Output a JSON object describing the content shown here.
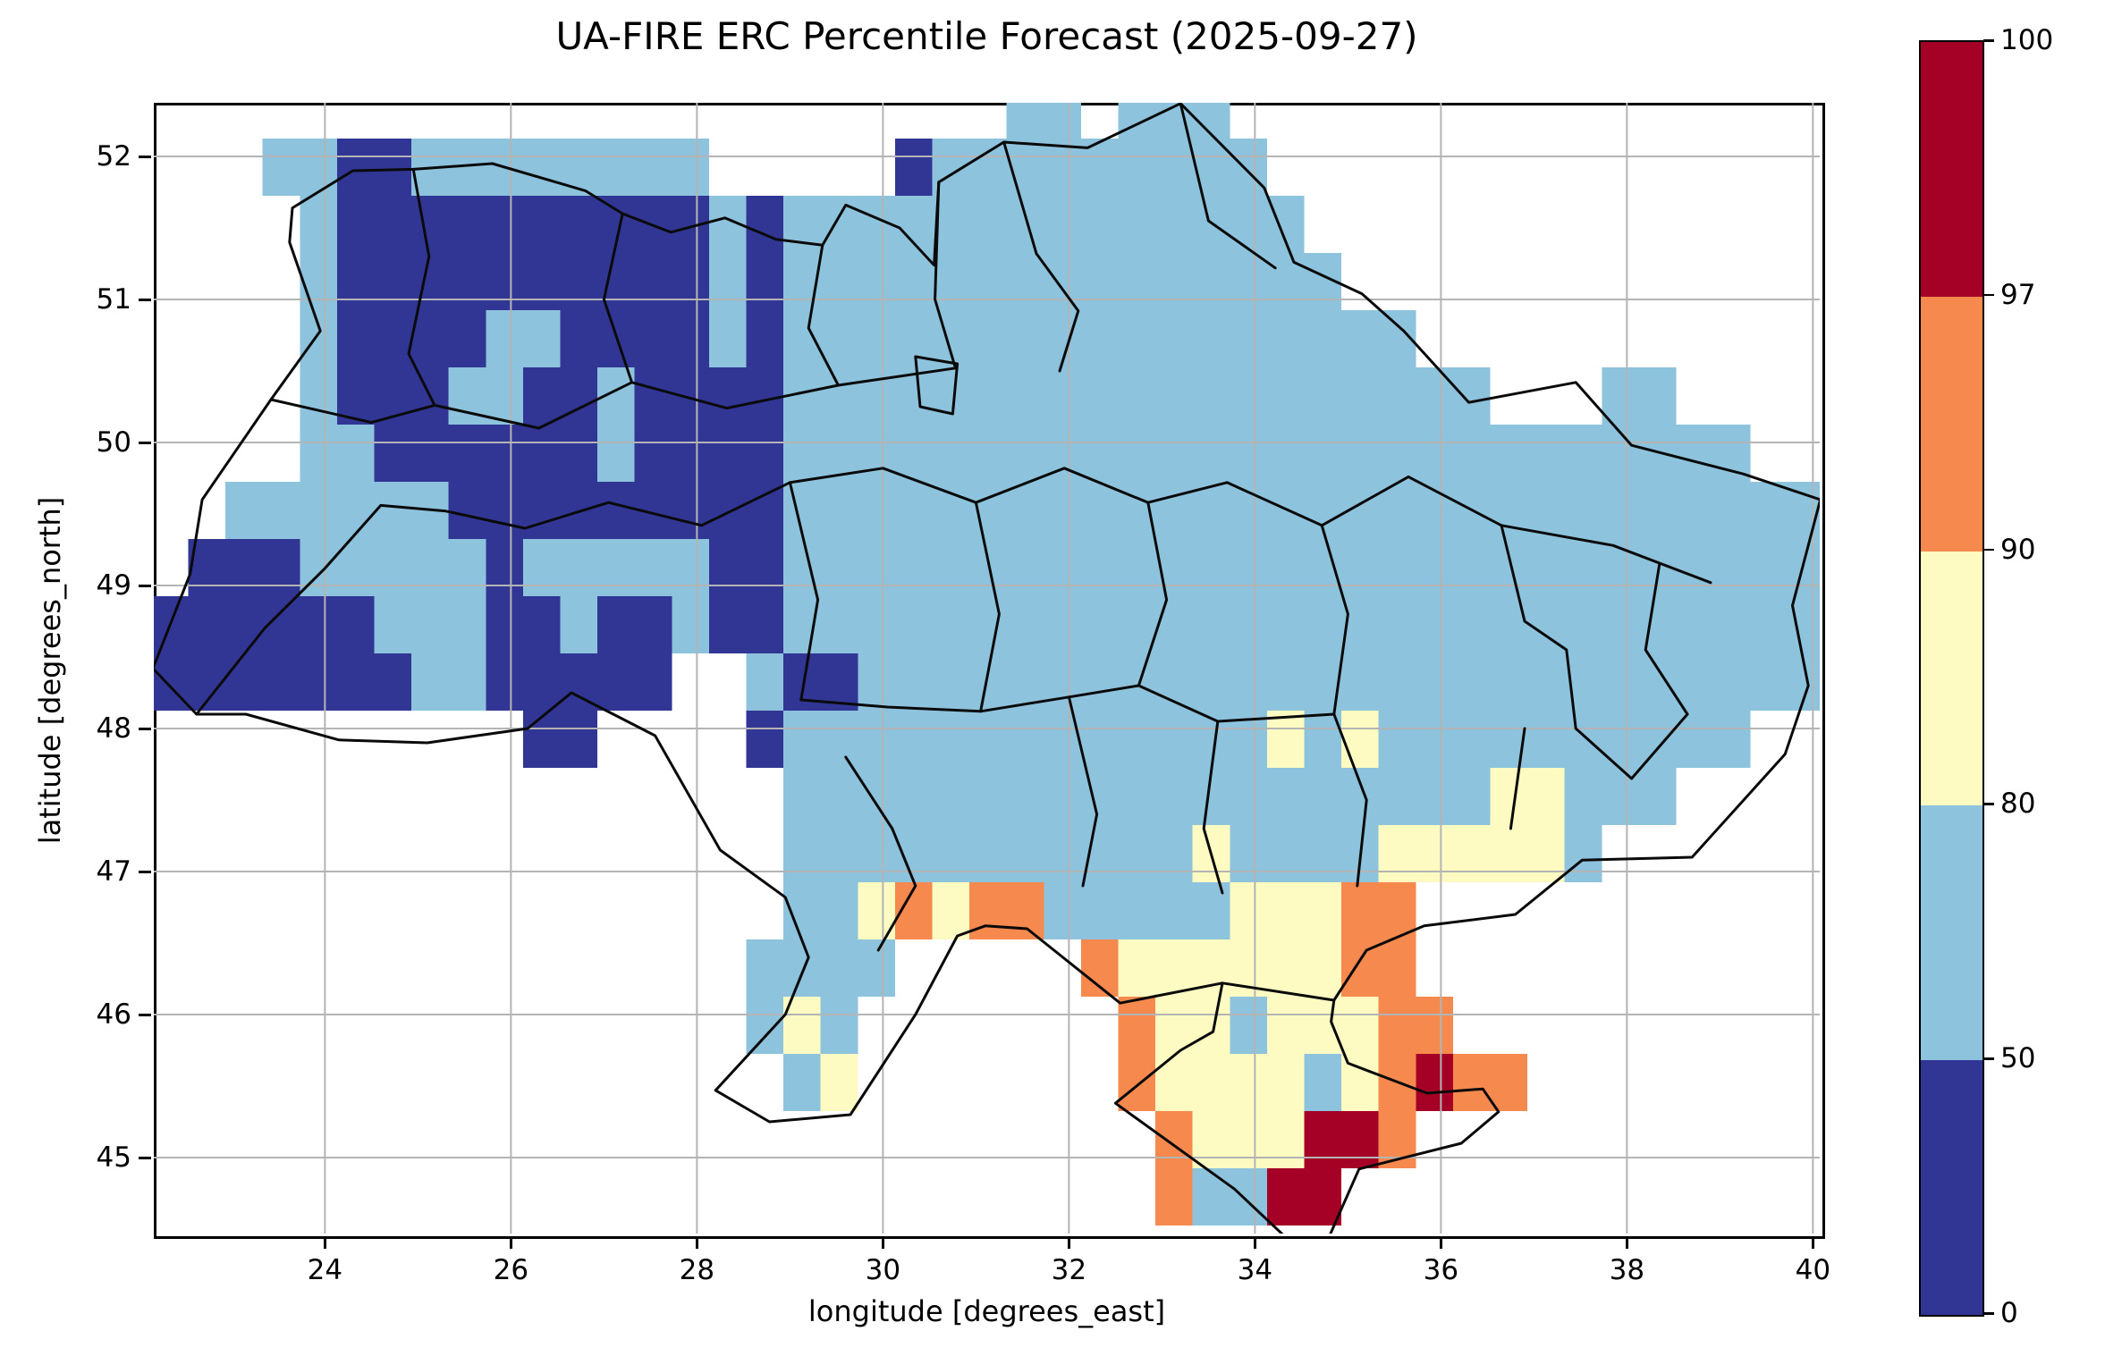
{
  "title": "UA-FIRE ERC Percentile Forecast (2025-09-27)",
  "axes": {
    "xlabel": "longitude [degrees_east]",
    "ylabel": "latitude [degrees_north]",
    "x_ticks": [
      {
        "value": 24,
        "label": "24"
      },
      {
        "value": 26,
        "label": "26"
      },
      {
        "value": 28,
        "label": "28"
      },
      {
        "value": 30,
        "label": "30"
      },
      {
        "value": 32,
        "label": "32"
      },
      {
        "value": 34,
        "label": "34"
      },
      {
        "value": 36,
        "label": "36"
      },
      {
        "value": 38,
        "label": "38"
      },
      {
        "value": 40,
        "label": "40"
      }
    ],
    "y_ticks": [
      {
        "value": 52,
        "label": "52"
      },
      {
        "value": 51,
        "label": "51"
      },
      {
        "value": 50,
        "label": "50"
      },
      {
        "value": 49,
        "label": "49"
      },
      {
        "value": 48,
        "label": "48"
      },
      {
        "value": 47,
        "label": "47"
      },
      {
        "value": 46,
        "label": "46"
      },
      {
        "value": 45,
        "label": "45"
      }
    ],
    "grid_color": "#b4b4b4",
    "lon_range": [
      22.16,
      40.08
    ],
    "lat_range": [
      44.47,
      52.375
    ]
  },
  "colorbar": {
    "boundaries": [
      0,
      50,
      80,
      90,
      97,
      100
    ],
    "labels_top_to_bottom": [
      "100",
      "97",
      "90",
      "80",
      "50",
      "0"
    ],
    "segments_bottom_to_top": [
      {
        "range": "0-50",
        "color": "#313695"
      },
      {
        "range": "50-80",
        "color": "#8ec3dd"
      },
      {
        "range": "80-90",
        "color": "#fdfbc1"
      },
      {
        "range": "90-97",
        "color": "#f6894e"
      },
      {
        "range": "97-100",
        "color": "#a50127"
      }
    ]
  },
  "chart_data": {
    "type": "heatmap",
    "title": "UA-FIRE ERC Percentile Forecast (2025-09-27)",
    "xlabel": "longitude [degrees_east]",
    "ylabel": "latitude [degrees_north]",
    "variable": "ERC percentile class",
    "grid": {
      "lon_origin": 22.13,
      "lat_top_origin": 52.525,
      "cell_deg": 0.4,
      "n_cols": 45,
      "n_rows": 20
    },
    "categories": {
      "B": {
        "range": "0-50",
        "color": "#313695"
      },
      "b": {
        "range": "50-80",
        "color": "#8ec3dd"
      },
      "y": {
        "range": "80-90",
        "color": "#fdfbc1"
      },
      "o": {
        "range": "90-97",
        "color": "#f6894e"
      },
      "r": {
        "range": "97-100",
        "color": "#a50127"
      },
      ".": {
        "range": "no data",
        "color": null
      }
    },
    "rows": [
      ".......................bb.bbb................",
      "...bbBBbbbbbbbb.....Bbbbbbbbbb...............",
      "....bBBBBBBBBBBbBbbbbbbbbbbbbbb..............",
      "....bBBBBBBBBBBbBbbbbbbbbbbbbbbb.............",
      "....bBBBBbbBBBBbBbbbbbbbbbbbbbbbbb...........",
      "....bBBBbbBBbBBBBbbbbbbbbbbbbbbbbbbb...bb....",
      "....bbBBBBBBbBBBBbbbbbbbbbbbbbbbbbbbbbbbbbb..",
      "..bbbbbbBBBBBBBBBbbbbbbbbbbbbbbbbbbbbbbbbbbbb",
      ".BBBbbbbbBbbbbbBBbbbbbbbbbbbbbbbbbbbbbbbbbbbb",
      "BBBBBBbbbBBbBBbBBbbbbbbbbbbbbbbbbbbbbbbbbbbbb",
      "BBBBBBBbbBBBBB..bBBbbbbbbbbbbbbbbbbbbbbbbbbbb",
      "..........BB....Bbbbbbbbbbbbbbybybbbbbbbbbb..",
      ".................bbbbbbbbbbbbbbbbbbbyybbb....",
      ".................bbbbbbbbbbbybbbbyyyyyb......",
      ".................bbyoyoobbbbbyyyoo...........",
      "................bbbb.....oyyyyyyoo...........",
      "................byb.......oyybyyyoo..........",
      ".................by.......oyyyybyoroo........",
      "...........................oyyyrro...........",
      "...........................obbrr............."
    ]
  },
  "map": {
    "border_color": "#0a0a0a",
    "borders": {
      "country": [
        [
          22.15,
          48.42
        ],
        [
          22.55,
          49.08
        ],
        [
          22.68,
          49.6
        ],
        [
          23.42,
          50.3
        ],
        [
          23.95,
          50.78
        ],
        [
          23.62,
          51.4
        ],
        [
          23.65,
          51.64
        ],
        [
          24.3,
          51.9
        ],
        [
          24.95,
          51.91
        ],
        [
          25.8,
          51.95
        ],
        [
          26.8,
          51.76
        ],
        [
          27.2,
          51.6
        ],
        [
          27.72,
          51.47
        ],
        [
          28.3,
          51.57
        ],
        [
          28.85,
          51.42
        ],
        [
          29.35,
          51.38
        ],
        [
          29.6,
          51.66
        ],
        [
          30.18,
          51.5
        ],
        [
          30.55,
          51.24
        ],
        [
          30.6,
          51.82
        ],
        [
          31.3,
          52.1
        ],
        [
          32.2,
          52.06
        ],
        [
          33.2,
          52.37
        ],
        [
          34.1,
          51.78
        ],
        [
          34.42,
          51.26
        ],
        [
          35.15,
          51.04
        ],
        [
          35.6,
          50.78
        ],
        [
          36.3,
          50.28
        ],
        [
          37.45,
          50.42
        ],
        [
          38.05,
          49.98
        ],
        [
          39.25,
          49.78
        ],
        [
          40.08,
          49.6
        ],
        [
          39.78,
          48.86
        ],
        [
          39.95,
          48.3
        ],
        [
          39.7,
          47.82
        ],
        [
          38.7,
          47.1
        ],
        [
          37.52,
          47.08
        ],
        [
          36.8,
          46.7
        ],
        [
          35.82,
          46.62
        ],
        [
          35.2,
          46.45
        ],
        [
          34.85,
          46.1
        ],
        [
          33.65,
          46.22
        ],
        [
          32.55,
          46.08
        ],
        [
          31.55,
          46.6
        ],
        [
          31.1,
          46.62
        ],
        [
          30.8,
          46.55
        ],
        [
          30.35,
          46.0
        ],
        [
          29.65,
          45.3
        ],
        [
          28.78,
          45.25
        ],
        [
          28.2,
          45.47
        ],
        [
          28.95,
          46.0
        ],
        [
          29.2,
          46.4
        ],
        [
          28.95,
          46.82
        ],
        [
          28.25,
          47.15
        ],
        [
          27.55,
          47.95
        ],
        [
          26.65,
          48.25
        ],
        [
          26.18,
          48.0
        ],
        [
          25.1,
          47.9
        ],
        [
          24.15,
          47.92
        ],
        [
          23.15,
          48.1
        ],
        [
          22.62,
          48.1
        ],
        [
          22.15,
          48.42
        ]
      ],
      "crimea": [
        [
          33.65,
          46.22
        ],
        [
          33.55,
          45.88
        ],
        [
          33.2,
          45.75
        ],
        [
          32.5,
          45.38
        ],
        [
          33.78,
          44.78
        ],
        [
          34.4,
          44.4
        ],
        [
          34.78,
          44.42
        ],
        [
          35.12,
          44.92
        ],
        [
          36.22,
          45.1
        ],
        [
          36.62,
          45.32
        ],
        [
          36.45,
          45.48
        ],
        [
          35.85,
          45.45
        ],
        [
          35.0,
          45.66
        ],
        [
          34.82,
          45.95
        ],
        [
          34.85,
          46.1
        ]
      ],
      "internal": [
        [
          [
            24.95,
            51.91
          ],
          [
            25.12,
            51.3
          ],
          [
            24.9,
            50.62
          ],
          [
            25.18,
            50.26
          ]
        ],
        [
          [
            27.2,
            51.6
          ],
          [
            27.0,
            51.0
          ],
          [
            27.3,
            50.42
          ]
        ],
        [
          [
            29.35,
            51.38
          ],
          [
            29.2,
            50.8
          ],
          [
            29.52,
            50.4
          ]
        ],
        [
          [
            30.6,
            51.82
          ],
          [
            30.56,
            51.0
          ],
          [
            30.78,
            50.52
          ]
        ],
        [
          [
            31.3,
            52.1
          ],
          [
            31.65,
            51.32
          ],
          [
            32.1,
            50.92
          ],
          [
            31.9,
            50.5
          ]
        ],
        [
          [
            33.2,
            52.37
          ],
          [
            33.5,
            51.55
          ],
          [
            34.22,
            51.22
          ]
        ],
        [
          [
            23.42,
            50.3
          ],
          [
            24.5,
            50.14
          ],
          [
            25.18,
            50.26
          ],
          [
            26.3,
            50.1
          ],
          [
            27.3,
            50.42
          ],
          [
            28.32,
            50.24
          ],
          [
            29.52,
            50.4
          ],
          [
            30.78,
            50.52
          ]
        ],
        [
          [
            22.62,
            48.1
          ],
          [
            23.35,
            48.7
          ],
          [
            24.0,
            49.12
          ],
          [
            24.6,
            49.56
          ],
          [
            25.3,
            49.52
          ],
          [
            26.15,
            49.4
          ],
          [
            27.05,
            49.58
          ],
          [
            28.05,
            49.42
          ],
          [
            29.0,
            49.72
          ],
          [
            30.0,
            49.82
          ],
          [
            31.0,
            49.58
          ],
          [
            31.95,
            49.82
          ],
          [
            32.85,
            49.58
          ],
          [
            33.7,
            49.72
          ],
          [
            34.72,
            49.42
          ],
          [
            35.65,
            49.76
          ],
          [
            36.65,
            49.42
          ],
          [
            37.85,
            49.28
          ],
          [
            38.9,
            49.02
          ]
        ],
        [
          [
            29.0,
            49.72
          ],
          [
            29.3,
            48.9
          ],
          [
            29.12,
            48.2
          ]
        ],
        [
          [
            31.0,
            49.58
          ],
          [
            31.25,
            48.8
          ],
          [
            31.05,
            48.12
          ]
        ],
        [
          [
            32.85,
            49.58
          ],
          [
            33.05,
            48.9
          ],
          [
            32.75,
            48.3
          ]
        ],
        [
          [
            34.72,
            49.42
          ],
          [
            35.0,
            48.8
          ],
          [
            34.85,
            48.1
          ]
        ],
        [
          [
            36.65,
            49.42
          ],
          [
            36.9,
            48.75
          ],
          [
            37.35,
            48.55
          ],
          [
            37.45,
            48.0
          ]
        ],
        [
          [
            38.35,
            49.15
          ],
          [
            38.2,
            48.55
          ],
          [
            38.65,
            48.1
          ]
        ],
        [
          [
            29.12,
            48.2
          ],
          [
            30.05,
            48.15
          ],
          [
            31.05,
            48.12
          ],
          [
            32.0,
            48.22
          ],
          [
            32.75,
            48.3
          ],
          [
            33.6,
            48.05
          ],
          [
            34.85,
            48.1
          ]
        ],
        [
          [
            32.0,
            48.22
          ],
          [
            32.3,
            47.4
          ],
          [
            32.15,
            46.9
          ]
        ],
        [
          [
            33.6,
            48.05
          ],
          [
            33.45,
            47.3
          ],
          [
            33.65,
            46.85
          ]
        ],
        [
          [
            34.85,
            48.1
          ],
          [
            35.2,
            47.5
          ],
          [
            35.1,
            46.9
          ]
        ],
        [
          [
            36.9,
            48.0
          ],
          [
            36.75,
            47.3
          ]
        ],
        [
          [
            29.6,
            47.8
          ],
          [
            30.1,
            47.3
          ],
          [
            30.35,
            46.9
          ],
          [
            29.95,
            46.45
          ]
        ],
        [
          [
            37.45,
            48.0
          ],
          [
            38.05,
            47.65
          ],
          [
            38.65,
            48.1
          ]
        ],
        [
          [
            30.35,
            50.6
          ],
          [
            30.8,
            50.55
          ],
          [
            30.75,
            50.2
          ],
          [
            30.4,
            50.25
          ],
          [
            30.35,
            50.6
          ]
        ]
      ]
    }
  }
}
